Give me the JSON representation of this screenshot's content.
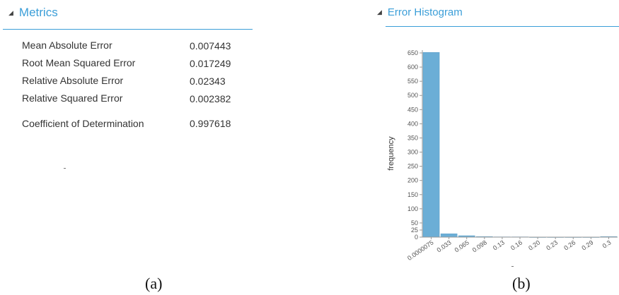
{
  "metrics_panel": {
    "title": "Metrics",
    "rows": [
      {
        "name": "Mean Absolute Error",
        "value": "0.007443"
      },
      {
        "name": "Root Mean Squared Error",
        "value": "0.017249"
      },
      {
        "name": "Relative Absolute Error",
        "value": "0.02343"
      },
      {
        "name": "Relative Squared Error",
        "value": "0.002382"
      },
      {
        "name": "Coefficient of Determination",
        "value": "0.997618"
      }
    ]
  },
  "histogram_panel": {
    "title": "Error Histogram"
  },
  "captions": {
    "a": "(a)",
    "b": "(b)"
  },
  "chart_data": {
    "type": "bar",
    "title": "",
    "xlabel": "",
    "ylabel": "frequency",
    "ylim": [
      0,
      650
    ],
    "y_ticks": [
      0,
      25,
      50,
      100,
      150,
      200,
      250,
      300,
      350,
      400,
      450,
      500,
      550,
      600,
      650
    ],
    "y_tick_labels": [
      "0",
      "25",
      "50",
      "100",
      "150",
      "200",
      "250",
      "300",
      "350",
      "400",
      "450",
      "500",
      "550",
      "600",
      "650"
    ],
    "categories": [
      "0.0000075",
      "0.033",
      "0.065",
      "0.098",
      "0.13",
      "0.16",
      "0.20",
      "0.23",
      "0.26",
      "0.29",
      "0.3"
    ],
    "values": [
      652,
      12,
      5,
      2,
      1,
      1,
      0,
      0,
      0,
      0,
      2
    ],
    "grid": false,
    "colors": {
      "bar": "#6baed6",
      "bar_stroke": "#5a9ec8",
      "axis": "#999999"
    }
  }
}
